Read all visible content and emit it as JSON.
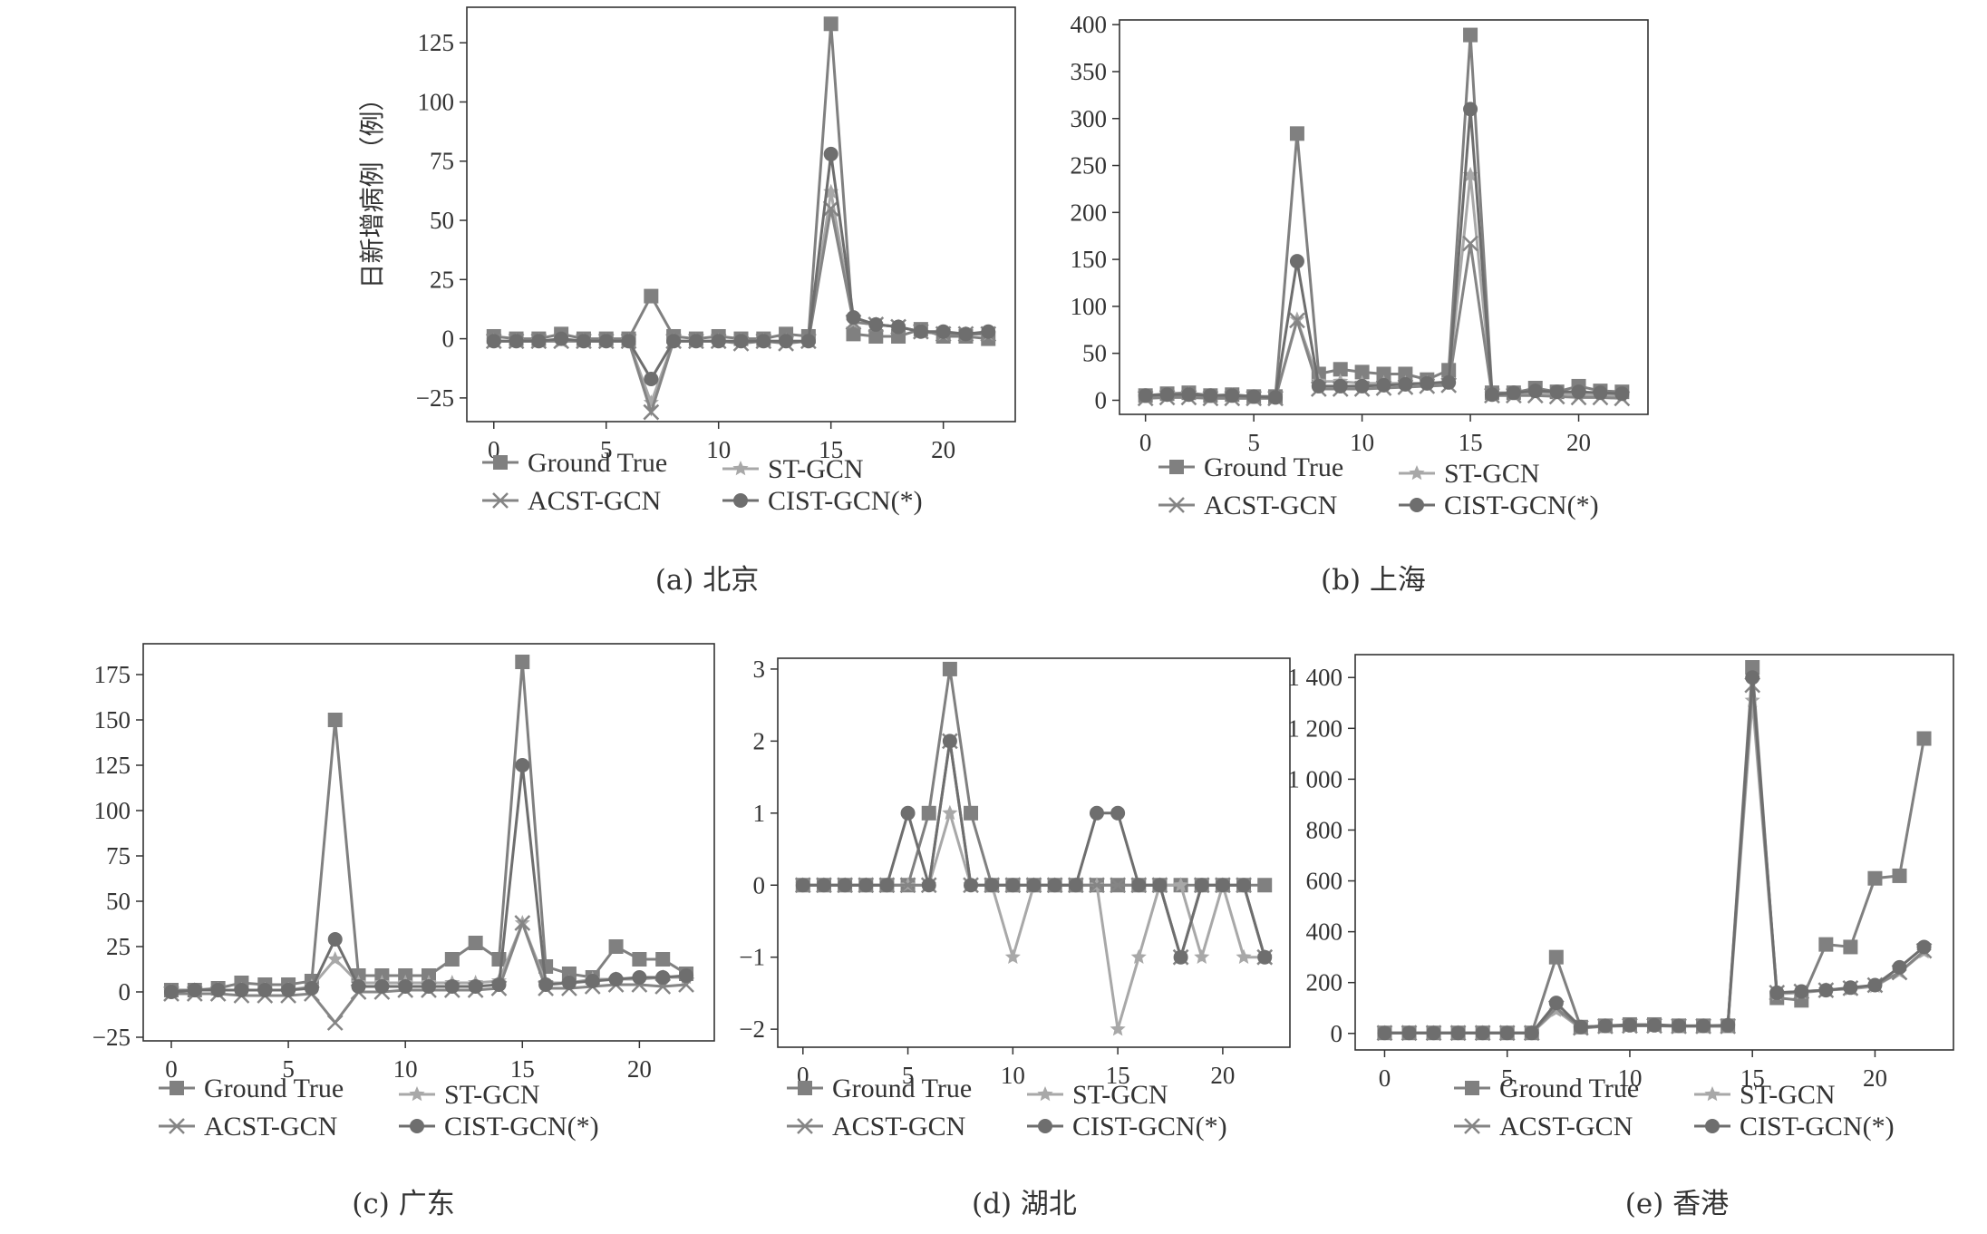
{
  "chart_data": [
    {
      "type": "line",
      "caption": "(a) 北京",
      "ylabel": "日新增病例（例）",
      "x": [
        0,
        1,
        2,
        3,
        4,
        5,
        6,
        7,
        8,
        9,
        10,
        11,
        12,
        13,
        14,
        15,
        16,
        17,
        18,
        19,
        20,
        21,
        22
      ],
      "xticks": [
        0,
        5,
        10,
        15,
        20
      ],
      "yticks": [
        -25,
        0,
        25,
        50,
        75,
        100,
        125
      ],
      "ytick_labels": [
        "−25",
        "0",
        "25",
        "50",
        "75",
        "100",
        "125"
      ],
      "ylim": [
        -35,
        140
      ],
      "grid": false,
      "legend_position": "bottom",
      "series": [
        {
          "name": "Ground True",
          "marker": "square",
          "color": "#808080",
          "values": [
            1,
            0,
            0,
            2,
            0,
            0,
            0,
            18,
            1,
            0,
            1,
            0,
            0,
            2,
            1,
            133,
            2,
            1,
            1,
            4,
            1,
            1,
            0
          ]
        },
        {
          "name": "ST-GCN",
          "marker": "star",
          "color": "#a8a8a8",
          "values": [
            -1,
            -1,
            -1,
            -1,
            -1,
            -1,
            -1,
            -27,
            -1,
            -1,
            -1,
            -1,
            -1,
            -1,
            -1,
            62,
            7,
            6,
            5,
            3,
            2,
            2,
            2
          ]
        },
        {
          "name": "ACST-GCN",
          "marker": "x",
          "color": "#858585",
          "values": [
            -1,
            -1,
            -1,
            -1,
            -1,
            -1,
            -1,
            -31,
            -1,
            -1,
            -1,
            -2,
            -1,
            -2,
            -1,
            55,
            7,
            6,
            5,
            3,
            2,
            2,
            2
          ]
        },
        {
          "name": "CIST-GCN(*)",
          "marker": "circle",
          "color": "#6e6e6e",
          "values": [
            -1,
            -1,
            -1,
            0,
            -1,
            -1,
            -1,
            -17,
            -1,
            -1,
            -1,
            -1,
            -1,
            -1,
            -1,
            78,
            9,
            6,
            5,
            3,
            3,
            2,
            3
          ]
        }
      ]
    },
    {
      "type": "line",
      "caption": "(b) 上海",
      "x": [
        0,
        1,
        2,
        3,
        4,
        5,
        6,
        7,
        8,
        9,
        10,
        11,
        12,
        13,
        14,
        15,
        16,
        17,
        18,
        19,
        20,
        21,
        22
      ],
      "xticks": [
        0,
        5,
        10,
        15,
        20
      ],
      "yticks": [
        0,
        50,
        100,
        150,
        200,
        250,
        300,
        350,
        400
      ],
      "ytick_labels": [
        "0",
        "50",
        "100",
        "150",
        "200",
        "250",
        "300",
        "350",
        "400"
      ],
      "ylim": [
        -15,
        405
      ],
      "grid": false,
      "legend_position": "bottom",
      "series": [
        {
          "name": "Ground True",
          "marker": "square",
          "color": "#808080",
          "values": [
            5,
            7,
            8,
            5,
            6,
            4,
            4,
            284,
            28,
            33,
            30,
            28,
            28,
            22,
            32,
            389,
            8,
            8,
            13,
            9,
            15,
            10,
            9
          ]
        },
        {
          "name": "ST-GCN",
          "marker": "star",
          "color": "#a8a8a8",
          "values": [
            3,
            5,
            6,
            4,
            5,
            3,
            3,
            86,
            20,
            20,
            18,
            18,
            18,
            18,
            20,
            240,
            6,
            7,
            8,
            7,
            6,
            5,
            5
          ]
        },
        {
          "name": "ACST-GCN",
          "marker": "x",
          "color": "#858585",
          "values": [
            2,
            3,
            3,
            2,
            2,
            2,
            2,
            85,
            12,
            12,
            12,
            13,
            14,
            15,
            16,
            167,
            5,
            5,
            5,
            4,
            3,
            3,
            2
          ]
        },
        {
          "name": "CIST-GCN(*)",
          "marker": "circle",
          "color": "#6e6e6e",
          "values": [
            5,
            6,
            6,
            5,
            5,
            4,
            3,
            148,
            15,
            15,
            15,
            16,
            17,
            18,
            19,
            310,
            6,
            8,
            10,
            9,
            9,
            8,
            7
          ]
        }
      ]
    },
    {
      "type": "line",
      "caption": "(c) 广东",
      "x": [
        0,
        1,
        2,
        3,
        4,
        5,
        6,
        7,
        8,
        9,
        10,
        11,
        12,
        13,
        14,
        15,
        16,
        17,
        18,
        19,
        20,
        21,
        22
      ],
      "xticks": [
        0,
        5,
        10,
        15,
        20
      ],
      "yticks": [
        -25,
        0,
        25,
        50,
        75,
        100,
        125,
        150,
        175
      ],
      "ytick_labels": [
        "−25",
        "0",
        "25",
        "50",
        "75",
        "100",
        "125",
        "150",
        "175"
      ],
      "ylim": [
        -27,
        192
      ],
      "grid": false,
      "legend_position": "bottom",
      "series": [
        {
          "name": "Ground True",
          "marker": "square",
          "color": "#808080",
          "values": [
            1,
            1,
            2,
            5,
            4,
            4,
            6,
            150,
            9,
            9,
            9,
            9,
            18,
            27,
            18,
            182,
            14,
            10,
            8,
            25,
            18,
            18,
            10
          ]
        },
        {
          "name": "ST-GCN",
          "marker": "star",
          "color": "#a8a8a8",
          "values": [
            0,
            1,
            1,
            1,
            1,
            1,
            3,
            18,
            5,
            5,
            5,
            5,
            5,
            5,
            6,
            38,
            5,
            5,
            7,
            7,
            7,
            8,
            8
          ]
        },
        {
          "name": "ACST-GCN",
          "marker": "x",
          "color": "#858585",
          "values": [
            -1,
            -1,
            -1,
            -2,
            -2,
            -2,
            -1,
            -17,
            0,
            0,
            1,
            1,
            1,
            1,
            2,
            38,
            2,
            2,
            3,
            4,
            4,
            3,
            4
          ]
        },
        {
          "name": "CIST-GCN(*)",
          "marker": "circle",
          "color": "#6e6e6e",
          "values": [
            0,
            1,
            1,
            1,
            1,
            1,
            2,
            29,
            3,
            3,
            3,
            3,
            3,
            3,
            4,
            125,
            4,
            5,
            6,
            7,
            8,
            8,
            9
          ]
        }
      ]
    },
    {
      "type": "line",
      "caption": "(d) 湖北",
      "x": [
        0,
        1,
        2,
        3,
        4,
        5,
        6,
        7,
        8,
        9,
        10,
        11,
        12,
        13,
        14,
        15,
        16,
        17,
        18,
        19,
        20,
        21,
        22
      ],
      "xticks": [
        0,
        5,
        10,
        15,
        20
      ],
      "yticks": [
        -2,
        -1,
        0,
        1,
        2,
        3
      ],
      "ytick_labels": [
        "−2",
        "−1",
        "0",
        "1",
        "2",
        "3"
      ],
      "ylim": [
        -2.25,
        3.15
      ],
      "grid": false,
      "legend_position": "bottom",
      "series": [
        {
          "name": "Ground True",
          "marker": "square",
          "color": "#808080",
          "values": [
            0,
            0,
            0,
            0,
            0,
            0,
            1,
            3,
            1,
            0,
            0,
            0,
            0,
            0,
            0,
            0,
            0,
            0,
            0,
            0,
            0,
            0,
            0
          ]
        },
        {
          "name": "ST-GCN",
          "marker": "star",
          "color": "#a8a8a8",
          "values": [
            0,
            0,
            0,
            0,
            0,
            0,
            0,
            1,
            0,
            0,
            -1,
            0,
            0,
            0,
            0,
            -2,
            -1,
            0,
            0,
            -1,
            0,
            -1,
            -1
          ]
        },
        {
          "name": "ACST-GCN",
          "marker": "x",
          "color": "#858585",
          "values": [
            0,
            0,
            0,
            0,
            0,
            0,
            0,
            2,
            0,
            0,
            0,
            0,
            0,
            0,
            0,
            0,
            0,
            0,
            -1,
            0,
            0,
            0,
            -1
          ]
        },
        {
          "name": "CIST-GCN(*)",
          "marker": "circle",
          "color": "#6e6e6e",
          "values": [
            0,
            0,
            0,
            0,
            0,
            1,
            0,
            2,
            0,
            0,
            0,
            0,
            0,
            0,
            1,
            1,
            0,
            0,
            -1,
            0,
            0,
            0,
            -1
          ]
        }
      ]
    },
    {
      "type": "line",
      "caption": "(e) 香港",
      "x": [
        0,
        1,
        2,
        3,
        4,
        5,
        6,
        7,
        8,
        9,
        10,
        11,
        12,
        13,
        14,
        15,
        16,
        17,
        18,
        19,
        20,
        21,
        22
      ],
      "xticks": [
        0,
        5,
        10,
        15,
        20
      ],
      "yticks": [
        0,
        200,
        400,
        600,
        800,
        1000,
        1200,
        1400
      ],
      "ytick_labels": [
        "0",
        "200",
        "400",
        "600",
        "800",
        "1 000",
        "1 200",
        "1 400"
      ],
      "ylim": [
        -65,
        1490
      ],
      "grid": false,
      "legend_position": "bottom",
      "series": [
        {
          "name": "Ground True",
          "marker": "square",
          "color": "#808080",
          "values": [
            2,
            2,
            2,
            2,
            2,
            2,
            2,
            300,
            25,
            30,
            35,
            35,
            30,
            30,
            30,
            1440,
            140,
            130,
            350,
            340,
            610,
            620,
            1160
          ]
        },
        {
          "name": "ST-GCN",
          "marker": "star",
          "color": "#a8a8a8",
          "values": [
            2,
            2,
            2,
            2,
            2,
            2,
            2,
            90,
            20,
            28,
            30,
            30,
            28,
            28,
            28,
            1310,
            155,
            160,
            170,
            175,
            185,
            240,
            320
          ]
        },
        {
          "name": "ACST-GCN",
          "marker": "x",
          "color": "#858585",
          "values": [
            2,
            2,
            2,
            2,
            2,
            2,
            2,
            100,
            22,
            28,
            30,
            30,
            28,
            28,
            28,
            1370,
            160,
            165,
            170,
            178,
            190,
            240,
            325
          ]
        },
        {
          "name": "CIST-GCN(*)",
          "marker": "circle",
          "color": "#6e6e6e",
          "values": [
            2,
            2,
            2,
            2,
            2,
            2,
            2,
            120,
            25,
            30,
            32,
            32,
            30,
            30,
            32,
            1400,
            160,
            165,
            170,
            180,
            190,
            260,
            340
          ]
        }
      ]
    }
  ]
}
